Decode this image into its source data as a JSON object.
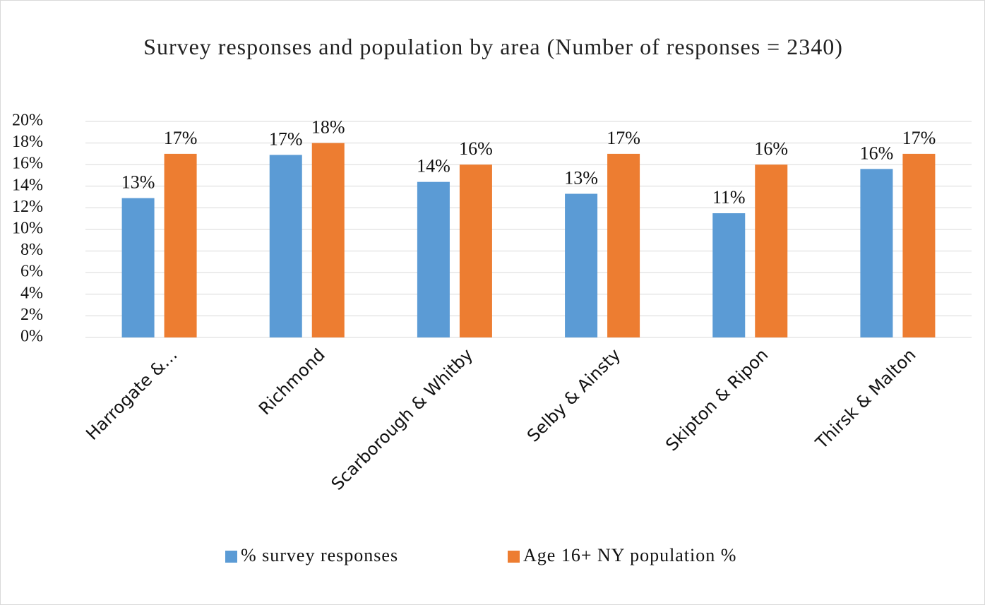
{
  "chart_data": {
    "type": "bar",
    "title": "Survey responses and population by area (Number of responses = 2340)",
    "categories": [
      "Harrogate &…",
      "Richmond",
      "Scarborough & Whitby",
      "Selby & Ainsty",
      "Skipton & Ripon",
      "Thirsk & Malton"
    ],
    "series": [
      {
        "name": "% survey responses",
        "color": "#5b9bd5",
        "values": [
          12.9,
          16.9,
          14.4,
          13.3,
          11.5,
          15.6
        ],
        "value_labels": [
          "13%",
          "17%",
          "14%",
          "13%",
          "11%",
          "16%"
        ]
      },
      {
        "name": "Age 16+ NY population %",
        "color": "#ed7d31",
        "values": [
          17,
          18,
          16,
          17,
          16,
          17
        ],
        "value_labels": [
          "17%",
          "18%",
          "16%",
          "17%",
          "16%",
          "17%"
        ]
      }
    ],
    "ylim": [
      0,
      20
    ],
    "yticks": [
      {
        "value": 0,
        "label": "0%"
      },
      {
        "value": 2,
        "label": "2%"
      },
      {
        "value": 4,
        "label": "4%"
      },
      {
        "value": 6,
        "label": "6%"
      },
      {
        "value": 8,
        "label": "8%"
      },
      {
        "value": 10,
        "label": "10%"
      },
      {
        "value": 12,
        "label": "12%"
      },
      {
        "value": 14,
        "label": "14%"
      },
      {
        "value": 16,
        "label": "16%"
      },
      {
        "value": 18,
        "label": "18%"
      },
      {
        "value": 20,
        "label": "20%"
      }
    ],
    "grid": true,
    "legend": "bottom"
  }
}
